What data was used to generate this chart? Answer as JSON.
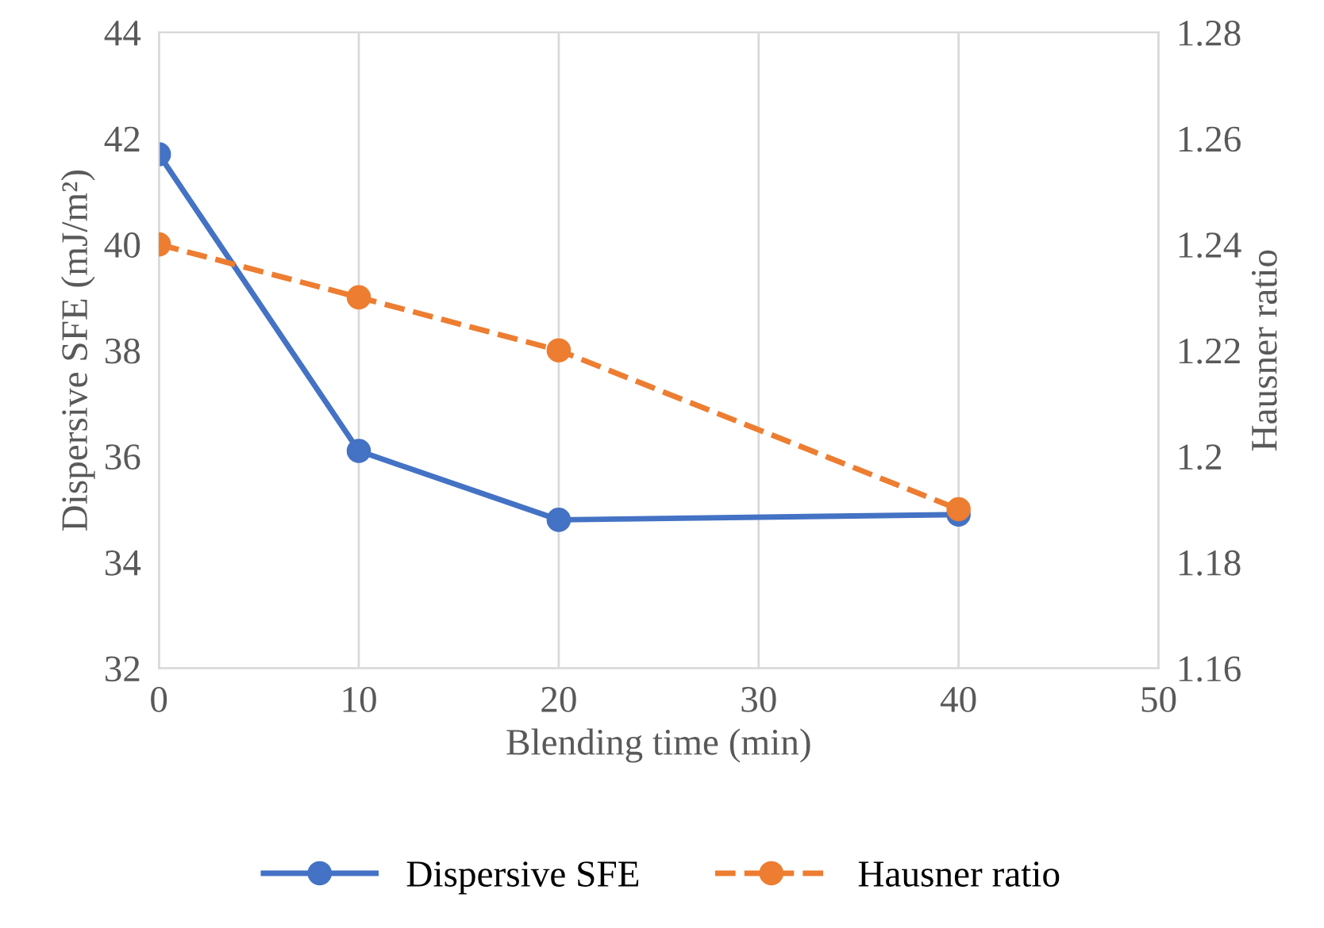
{
  "chart_data": {
    "type": "line",
    "x": [
      0,
      10,
      20,
      40
    ],
    "series": [
      {
        "name": "Dispersive SFE",
        "color": "#4472c4",
        "values": [
          41.7,
          36.1,
          34.8,
          34.9
        ],
        "line_style": "solid"
      },
      {
        "name": "Hausner ratio",
        "color": "#ed7d31",
        "values": [
          1.24,
          1.23,
          1.22,
          1.19
        ],
        "axis": "y2",
        "line_style": "dashed"
      }
    ],
    "xlabel": "Blending time (min)",
    "ylabel": "Dispersive SFE (mJ/m²)",
    "y2label": "Hausner ratio",
    "xlim": [
      0,
      50
    ],
    "xticks": [
      0,
      10,
      20,
      30,
      40,
      50
    ],
    "ylim": [
      32,
      44
    ],
    "yticks": [
      32,
      34,
      36,
      38,
      40,
      42,
      44
    ],
    "y2lim": [
      1.16,
      1.28
    ],
    "y2ticks": [
      1.16,
      1.18,
      1.2,
      1.22,
      1.24,
      1.26,
      1.28
    ],
    "grid": "x",
    "legend": "bottom",
    "marker": "circle"
  }
}
